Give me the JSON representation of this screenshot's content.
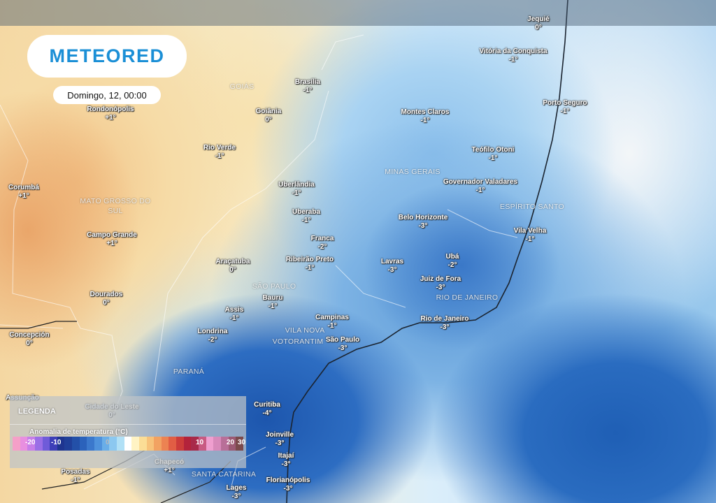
{
  "brand": {
    "name": "METEORED"
  },
  "date": "Domingo, 12, 00:00",
  "legend": {
    "title": "LEGENDA",
    "subtitle": "Anomalia de temperatura (°C)",
    "ticks": [
      "-20",
      "-10",
      "0",
      "10",
      "20",
      "30"
    ],
    "colors": [
      "#f5a0c8",
      "#e88fe0",
      "#c77ee8",
      "#9a6ee6",
      "#6f5bd9",
      "#3d3fb8",
      "#1f3590",
      "#203f99",
      "#2350a8",
      "#2b62bb",
      "#3b78cc",
      "#4f92dc",
      "#6aaee8",
      "#8cc8f0",
      "#b1e0f6",
      "#ffffff",
      "#fff3c4",
      "#fbdd96",
      "#f7c27a",
      "#f2a262",
      "#ec8352",
      "#e15e44",
      "#cc3c3a",
      "#b3233b",
      "#a82a4a",
      "#c85a82",
      "#ef9fcf",
      "#d88aba",
      "#b86f98",
      "#9c5a74",
      "#7b4a4c"
    ]
  },
  "regions": [
    "GOIÁS",
    "MINAS GERAIS",
    "MATO GROSSO DO SUL",
    "ESPÍRITO SANTO",
    "SÃO PAULO",
    "RIO DE JANEIRO",
    "VILA NOVA",
    "VOTORANTIM",
    "PARANÁ",
    "SANTA CATARINA"
  ],
  "cities": [
    {
      "name": "Jequié",
      "value": "0°"
    },
    {
      "name": "Vitória da Conquista",
      "value": "-1°"
    },
    {
      "name": "Brasília",
      "value": "-1°"
    },
    {
      "name": "Rondonópolis",
      "value": "+1°"
    },
    {
      "name": "Goiânia",
      "value": "0°"
    },
    {
      "name": "Montes Claros",
      "value": "-1°"
    },
    {
      "name": "Porto Seguro",
      "value": "-1°"
    },
    {
      "name": "Rio Verde",
      "value": "-1°"
    },
    {
      "name": "Teófilo Otoni",
      "value": "-1°"
    },
    {
      "name": "Corumbá",
      "value": "+1°"
    },
    {
      "name": "Uberlândia",
      "value": "-1°"
    },
    {
      "name": "Governador Valadares",
      "value": "-1°"
    },
    {
      "name": "Uberaba",
      "value": "-1°"
    },
    {
      "name": "Belo Horizonte",
      "value": "-3°"
    },
    {
      "name": "Campo Grande",
      "value": "+1°"
    },
    {
      "name": "Vila Velha",
      "value": "-1°"
    },
    {
      "name": "Franca",
      "value": "-2°"
    },
    {
      "name": "Araçatuba",
      "value": "0°"
    },
    {
      "name": "Ribeirão Preto",
      "value": "-1°"
    },
    {
      "name": "Lavras",
      "value": "-3°"
    },
    {
      "name": "Ubá",
      "value": "-2°"
    },
    {
      "name": "Juiz de Fora",
      "value": "-3°"
    },
    {
      "name": "Dourados",
      "value": "0°"
    },
    {
      "name": "Bauru",
      "value": "-1°"
    },
    {
      "name": "Assis",
      "value": "-1°"
    },
    {
      "name": "Campinas",
      "value": "-1°"
    },
    {
      "name": "Rio de Janeiro",
      "value": "-3°"
    },
    {
      "name": "Londrina",
      "value": "-2°"
    },
    {
      "name": "Concepción",
      "value": "0°"
    },
    {
      "name": "São Paulo",
      "value": "-3°"
    },
    {
      "name": "Assunção",
      "value": ""
    },
    {
      "name": "Cidade do Leste",
      "value": "0°"
    },
    {
      "name": "Curitiba",
      "value": "-4°"
    },
    {
      "name": "Joinville",
      "value": "-3°"
    },
    {
      "name": "Itajaí",
      "value": "-3°"
    },
    {
      "name": "Chapecó",
      "value": "+1°"
    },
    {
      "name": "Posadas",
      "value": "-1°"
    },
    {
      "name": "Florianópolis",
      "value": "-3°"
    },
    {
      "name": "Lages",
      "value": "-3°"
    }
  ]
}
